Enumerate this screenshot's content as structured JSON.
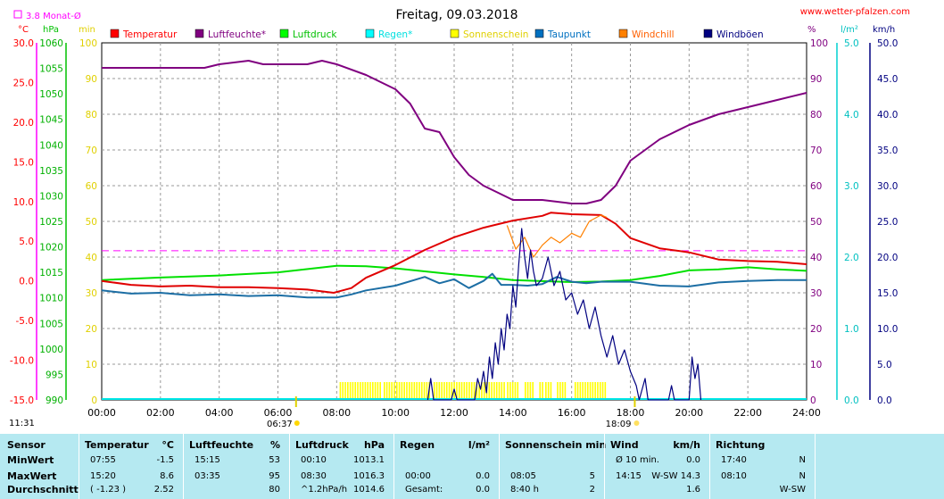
{
  "chart_data": {
    "type": "line",
    "title": "Freitag, 09.03.2018",
    "source": "www.wetter-pfalzen.com",
    "monthly_avg_label": "3.8 Monat-Ø",
    "monthly_avg_value": 3.8,
    "sunrise": "06:37",
    "sunset": "18:09",
    "moon_times": {
      "rise": "11:31"
    },
    "units": {
      "temp": "°C",
      "pressure": "hPa",
      "sun": "min",
      "humidity": "%",
      "rain": "l/m²",
      "wind": "km/h"
    },
    "axes": {
      "temp": {
        "range": [
          -15,
          30
        ],
        "ticks": [
          "-15.0",
          "-10.0",
          "-5.0",
          "0.0",
          "5.0",
          "10.0",
          "15.0",
          "20.0",
          "25.0",
          "30.0"
        ]
      },
      "pressure": {
        "range": [
          990,
          1060
        ],
        "ticks": [
          "990",
          "995",
          "1000",
          "1005",
          "1010",
          "1015",
          "1020",
          "1025",
          "1030",
          "1035",
          "1040",
          "1045",
          "1050",
          "1055",
          "1060"
        ]
      },
      "sun": {
        "range": [
          0,
          100
        ],
        "ticks": [
          "0",
          "10",
          "20",
          "30",
          "40",
          "50",
          "60",
          "70",
          "80",
          "90",
          "100"
        ]
      },
      "humidity": {
        "range": [
          0,
          100
        ],
        "ticks": [
          "0",
          "10",
          "20",
          "30",
          "40",
          "50",
          "60",
          "70",
          "80",
          "90",
          "100"
        ]
      },
      "rain": {
        "range": [
          0,
          5
        ],
        "ticks": [
          "0.0",
          "1.0",
          "2.0",
          "3.0",
          "4.0",
          "5.0"
        ]
      },
      "wind": {
        "range": [
          0,
          50
        ],
        "ticks": [
          "0.0",
          "5.0",
          "10.0",
          "15.0",
          "20.0",
          "25.0",
          "30.0",
          "35.0",
          "40.0",
          "45.0",
          "50.0"
        ]
      },
      "time": {
        "range": [
          0,
          24
        ],
        "ticks": [
          "00:00",
          "02:00",
          "04:00",
          "06:00",
          "08:00",
          "10:00",
          "12:00",
          "14:00",
          "16:00",
          "18:00",
          "20:00",
          "22:00",
          "24:00"
        ]
      }
    },
    "legend": [
      {
        "name": "Temperatur",
        "color": "#ff0000"
      },
      {
        "name": "Luftfeuchte*",
        "color": "#800080"
      },
      {
        "name": "Luftdruck",
        "color": "#00ff00"
      },
      {
        "name": "Regen*",
        "color": "#00ffff"
      },
      {
        "name": "Sonnenschein",
        "color": "#ffff00"
      },
      {
        "name": "Taupunkt",
        "color": "#0070c0"
      },
      {
        "name": "Windchill",
        "color": "#ff8000"
      },
      {
        "name": "Windböen",
        "color": "#000080"
      }
    ],
    "series": [
      {
        "name": "Temperatur",
        "axis": "temp",
        "color": "#e00000",
        "points": [
          [
            0,
            0
          ],
          [
            1,
            -0.5
          ],
          [
            2,
            -0.7
          ],
          [
            3,
            -0.6
          ],
          [
            4,
            -0.8
          ],
          [
            5,
            -0.8
          ],
          [
            6,
            -0.9
          ],
          [
            7,
            -1.1
          ],
          [
            7.9,
            -1.5
          ],
          [
            8.5,
            -0.9
          ],
          [
            9,
            0.4
          ],
          [
            10,
            2
          ],
          [
            11,
            3.9
          ],
          [
            12,
            5.5
          ],
          [
            13,
            6.7
          ],
          [
            14,
            7.6
          ],
          [
            15,
            8.2
          ],
          [
            15.3,
            8.6
          ],
          [
            16,
            8.4
          ],
          [
            17,
            8.3
          ],
          [
            17.5,
            7.2
          ],
          [
            18,
            5.4
          ],
          [
            19,
            4.1
          ],
          [
            20,
            3.6
          ],
          [
            21,
            2.7
          ],
          [
            22,
            2.5
          ],
          [
            23,
            2.4
          ],
          [
            24,
            2.1
          ]
        ]
      },
      {
        "name": "Luftfeuchte*",
        "axis": "humidity",
        "color": "#800080",
        "points": [
          [
            0,
            93
          ],
          [
            3.5,
            93
          ],
          [
            4,
            94
          ],
          [
            5,
            95
          ],
          [
            5.5,
            94
          ],
          [
            7,
            94
          ],
          [
            7.5,
            95
          ],
          [
            8,
            94
          ],
          [
            9,
            91
          ],
          [
            10,
            87
          ],
          [
            10.5,
            83
          ],
          [
            11,
            76
          ],
          [
            11.5,
            75
          ],
          [
            12,
            68
          ],
          [
            12.5,
            63
          ],
          [
            13,
            60
          ],
          [
            13.5,
            58
          ],
          [
            14,
            56
          ],
          [
            15,
            56
          ],
          [
            16,
            55
          ],
          [
            16.5,
            55
          ],
          [
            17,
            56
          ],
          [
            17.5,
            60
          ],
          [
            18,
            67
          ],
          [
            19,
            73
          ],
          [
            20,
            77
          ],
          [
            21,
            80
          ],
          [
            22,
            82
          ],
          [
            23,
            84
          ],
          [
            24,
            86
          ]
        ]
      },
      {
        "name": "Luftdruck",
        "axis": "pressure",
        "color": "#00e000",
        "points": [
          [
            0,
            1013.5
          ],
          [
            2,
            1014
          ],
          [
            4,
            1014.4
          ],
          [
            6,
            1015
          ],
          [
            8,
            1016.3
          ],
          [
            9,
            1016.2
          ],
          [
            10,
            1015.8
          ],
          [
            11,
            1015.2
          ],
          [
            12,
            1014.6
          ],
          [
            13,
            1014.1
          ],
          [
            14,
            1013.5
          ],
          [
            16,
            1013.1
          ],
          [
            17,
            1013.2
          ],
          [
            18,
            1013.5
          ],
          [
            19,
            1014.3
          ],
          [
            20,
            1015.4
          ],
          [
            21,
            1015.6
          ],
          [
            22,
            1016
          ],
          [
            23,
            1015.6
          ],
          [
            24,
            1015.3
          ]
        ]
      },
      {
        "name": "Taupunkt",
        "axis": "temp",
        "color": "#1c6ea4",
        "points": [
          [
            0,
            -1.2
          ],
          [
            1,
            -1.6
          ],
          [
            2,
            -1.5
          ],
          [
            3,
            -1.8
          ],
          [
            4,
            -1.7
          ],
          [
            5,
            -1.9
          ],
          [
            6,
            -1.8
          ],
          [
            7,
            -2.1
          ],
          [
            8,
            -2.1
          ],
          [
            8.5,
            -1.7
          ],
          [
            9,
            -1.2
          ],
          [
            10,
            -0.6
          ],
          [
            11,
            0.5
          ],
          [
            11.5,
            -0.3
          ],
          [
            12,
            0.2
          ],
          [
            12.5,
            -0.9
          ],
          [
            13,
            0
          ],
          [
            13.3,
            0.9
          ],
          [
            13.6,
            -0.5
          ],
          [
            14,
            -0.5
          ],
          [
            14.5,
            -0.6
          ],
          [
            15,
            -0.4
          ],
          [
            15.5,
            0.5
          ],
          [
            16,
            -0.1
          ],
          [
            16.5,
            -0.3
          ],
          [
            17,
            -0.1
          ],
          [
            18,
            -0.1
          ],
          [
            19,
            -0.6
          ],
          [
            20,
            -0.7
          ],
          [
            21,
            -0.2
          ],
          [
            22,
            0
          ],
          [
            23,
            0.1
          ],
          [
            24,
            0.1
          ]
        ]
      },
      {
        "name": "Windchill",
        "axis": "temp",
        "color": "#ff8000",
        "points": [
          [
            13.8,
            7
          ],
          [
            14.1,
            4
          ],
          [
            14.4,
            5.5
          ],
          [
            14.7,
            3
          ],
          [
            15,
            4.5
          ],
          [
            15.3,
            5.5
          ],
          [
            15.6,
            4.8
          ],
          [
            16,
            6
          ],
          [
            16.3,
            5.5
          ],
          [
            16.6,
            7.5
          ],
          [
            17,
            8.3
          ],
          [
            17.2,
            8
          ]
        ]
      },
      {
        "name": "Windböen",
        "axis": "wind",
        "color": "#000080",
        "points": [
          [
            11.1,
            0
          ],
          [
            11.2,
            3
          ],
          [
            11.3,
            0
          ],
          [
            11.9,
            0
          ],
          [
            12,
            1.5
          ],
          [
            12.1,
            0
          ],
          [
            12.7,
            0
          ],
          [
            12.8,
            3
          ],
          [
            12.9,
            1.5
          ],
          [
            13,
            4
          ],
          [
            13.1,
            1
          ],
          [
            13.2,
            6
          ],
          [
            13.3,
            3
          ],
          [
            13.4,
            8
          ],
          [
            13.5,
            5
          ],
          [
            13.6,
            10
          ],
          [
            13.7,
            7
          ],
          [
            13.8,
            12
          ],
          [
            13.9,
            10
          ],
          [
            14,
            16
          ],
          [
            14.1,
            13
          ],
          [
            14.2,
            19
          ],
          [
            14.3,
            24
          ],
          [
            14.4,
            20
          ],
          [
            14.5,
            17
          ],
          [
            14.6,
            21
          ],
          [
            14.7,
            18
          ],
          [
            14.8,
            16
          ],
          [
            15,
            17
          ],
          [
            15.2,
            20
          ],
          [
            15.4,
            16
          ],
          [
            15.6,
            18
          ],
          [
            15.8,
            14
          ],
          [
            16,
            15
          ],
          [
            16.2,
            12
          ],
          [
            16.4,
            14
          ],
          [
            16.6,
            10
          ],
          [
            16.8,
            13
          ],
          [
            17,
            9
          ],
          [
            17.2,
            6
          ],
          [
            17.4,
            9
          ],
          [
            17.6,
            5
          ],
          [
            17.8,
            7
          ],
          [
            18,
            4
          ],
          [
            18.2,
            2
          ],
          [
            18.3,
            0
          ],
          [
            18.5,
            3
          ],
          [
            18.6,
            0
          ],
          [
            19.3,
            0
          ],
          [
            19.4,
            2
          ],
          [
            19.5,
            0
          ],
          [
            20,
            0
          ],
          [
            20.1,
            6
          ],
          [
            20.2,
            3
          ],
          [
            20.3,
            5
          ],
          [
            20.4,
            0
          ]
        ]
      }
    ],
    "sunshine_bars": [
      [
        8.1,
        9.5
      ],
      [
        9.6,
        11.2
      ],
      [
        11.3,
        13.7
      ],
      [
        13.8,
        14.2
      ],
      [
        14.4,
        14.7
      ],
      [
        14.9,
        15.0
      ],
      [
        15.1,
        15.3
      ],
      [
        15.5,
        15.8
      ],
      [
        16.1,
        17.2
      ]
    ],
    "sunshine_level": 5
  },
  "summary": {
    "sensor": {
      "header": "Sensor",
      "rows": [
        "MinWert",
        "MaxWert",
        "Durchschnitt"
      ]
    },
    "temperature": {
      "header": "Temperatur",
      "unit": "°C",
      "rows": [
        [
          "07:55",
          "-1.5"
        ],
        [
          "15:20",
          "8.6"
        ],
        [
          "( -1.23 )",
          "2.52"
        ]
      ]
    },
    "humidity": {
      "header": "Luftfeuchte",
      "unit": "%",
      "rows": [
        [
          "15:15",
          "53"
        ],
        [
          "03:35",
          "95"
        ],
        [
          "",
          "80"
        ]
      ]
    },
    "pressure": {
      "header": "Luftdruck",
      "unit": "hPa",
      "rows": [
        [
          "00:10",
          "1013.1"
        ],
        [
          "08:30",
          "1016.3"
        ],
        [
          "^1.2hPa/h",
          "1014.6"
        ]
      ]
    },
    "rain": {
      "header": "Regen",
      "unit": "l/m²",
      "rows": [
        [
          "",
          ""
        ],
        [
          "00:00",
          "0.0"
        ],
        [
          "Gesamt:",
          "0.0"
        ]
      ]
    },
    "sunshine": {
      "header": "Sonnenschein min",
      "rows": [
        [
          "",
          ""
        ],
        [
          "08:05",
          "5"
        ],
        [
          "8:40 h",
          "2"
        ]
      ]
    },
    "wind": {
      "header": "Wind",
      "unit": "km/h",
      "rows": [
        [
          "Ø 10 min.",
          "0.0"
        ],
        [
          "14:15",
          "W-SW 14.3"
        ],
        [
          "",
          "1.6"
        ]
      ]
    },
    "direction": {
      "header": "Richtung",
      "rows": [
        [
          "17:40",
          "N"
        ],
        [
          "08:10",
          "N"
        ],
        [
          "",
          "W-SW"
        ]
      ]
    }
  }
}
